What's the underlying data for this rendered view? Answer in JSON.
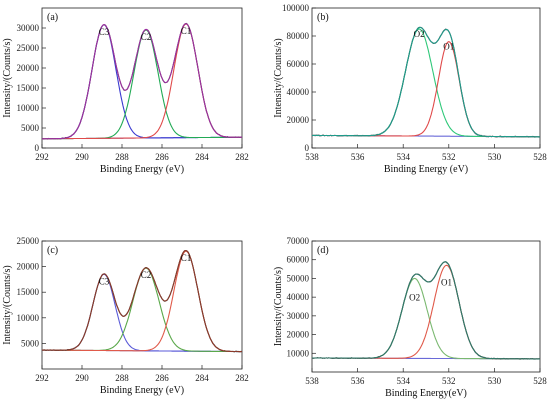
{
  "figure": {
    "colors": {
      "frame": "#222222",
      "background": "#ffffff"
    }
  },
  "chart_data": [
    {
      "panel": "(a)",
      "type": "line",
      "xlabel": "Binding Energy (eV)",
      "ylabel": "Intensity/(Counts/s)",
      "xlim": [
        292,
        282
      ],
      "ylim": [
        0,
        35000
      ],
      "xticks": [
        292,
        290,
        288,
        286,
        284,
        282
      ],
      "yticks": [
        0,
        5000,
        10000,
        15000,
        20000,
        25000,
        30000
      ],
      "background": [
        [
          292,
          2300
        ],
        [
          282,
          2700
        ]
      ],
      "peaks": [
        {
          "label": "C3",
          "center": 288.9,
          "height": 30800,
          "width": 0.6,
          "color": "#3a3ad0"
        },
        {
          "label": "C2",
          "center": 286.8,
          "height": 29500,
          "width": 0.6,
          "color": "#22aa55"
        },
        {
          "label": "C1",
          "center": 284.8,
          "height": 31000,
          "width": 0.6,
          "color": "#e04a4a"
        }
      ],
      "envelope_color": "#9c2fa0",
      "raw_color": "#555555"
    },
    {
      "panel": "(b)",
      "type": "line",
      "xlabel": "Binding Energy (eV)",
      "ylabel": "Intensity/(Counts/s)",
      "xlim": [
        538,
        528
      ],
      "ylim": [
        0,
        100000
      ],
      "xticks": [
        538,
        536,
        534,
        532,
        530,
        528
      ],
      "yticks": [
        0,
        20000,
        40000,
        60000,
        80000,
        100000
      ],
      "background": [
        [
          538,
          9000
        ],
        [
          528,
          8000
        ]
      ],
      "peaks": [
        {
          "label": "O2",
          "center": 533.3,
          "height": 85000,
          "width": 0.6,
          "color": "#2fc879"
        },
        {
          "label": "O1",
          "center": 532.0,
          "height": 76000,
          "width": 0.45,
          "color": "#e04a4a"
        }
      ],
      "envelope_color": "#1f9a8a",
      "raw_color": "#555555"
    },
    {
      "panel": "(c)",
      "type": "line",
      "xlabel": "Binding Energy (eV)",
      "ylabel": "Intensity/(Counts/s)",
      "xlim": [
        292,
        282
      ],
      "ylim": [
        0,
        25000
      ],
      "xticks": [
        292,
        290,
        288,
        286,
        284,
        282
      ],
      "yticks": [
        5000,
        10000,
        15000,
        20000,
        25000
      ],
      "background": [
        [
          292,
          3700
        ],
        [
          282,
          3400
        ]
      ],
      "peaks": [
        {
          "label": "C3",
          "center": 288.9,
          "height": 18500,
          "width": 0.55,
          "color": "#5a5ad8"
        },
        {
          "label": "C2",
          "center": 286.8,
          "height": 19700,
          "width": 0.65,
          "color": "#5aa84a"
        },
        {
          "label": "C1",
          "center": 284.8,
          "height": 23000,
          "width": 0.6,
          "color": "#e05a4a"
        }
      ],
      "envelope_color": "#8a3a2a",
      "raw_color": "#555555"
    },
    {
      "panel": "(d)",
      "type": "line",
      "xlabel": "Binding Energy(eV)",
      "ylabel": "Intensity/(Counts/s)",
      "xlim": [
        538,
        528
      ],
      "ylim": [
        0,
        70000
      ],
      "xticks": [
        538,
        536,
        534,
        532,
        530,
        528
      ],
      "yticks": [
        10000,
        20000,
        30000,
        40000,
        50000,
        60000,
        70000
      ],
      "background": [
        [
          538,
          7500
        ],
        [
          528,
          7000
        ]
      ],
      "peaks": [
        {
          "label": "O2",
          "center": 533.5,
          "height": 50000,
          "width": 0.55,
          "color": "#7ab870"
        },
        {
          "label": "O1",
          "center": 532.1,
          "height": 57000,
          "width": 0.55,
          "color": "#e05a4a"
        }
      ],
      "envelope_color": "#2f7a6a",
      "raw_color": "#555555"
    }
  ]
}
